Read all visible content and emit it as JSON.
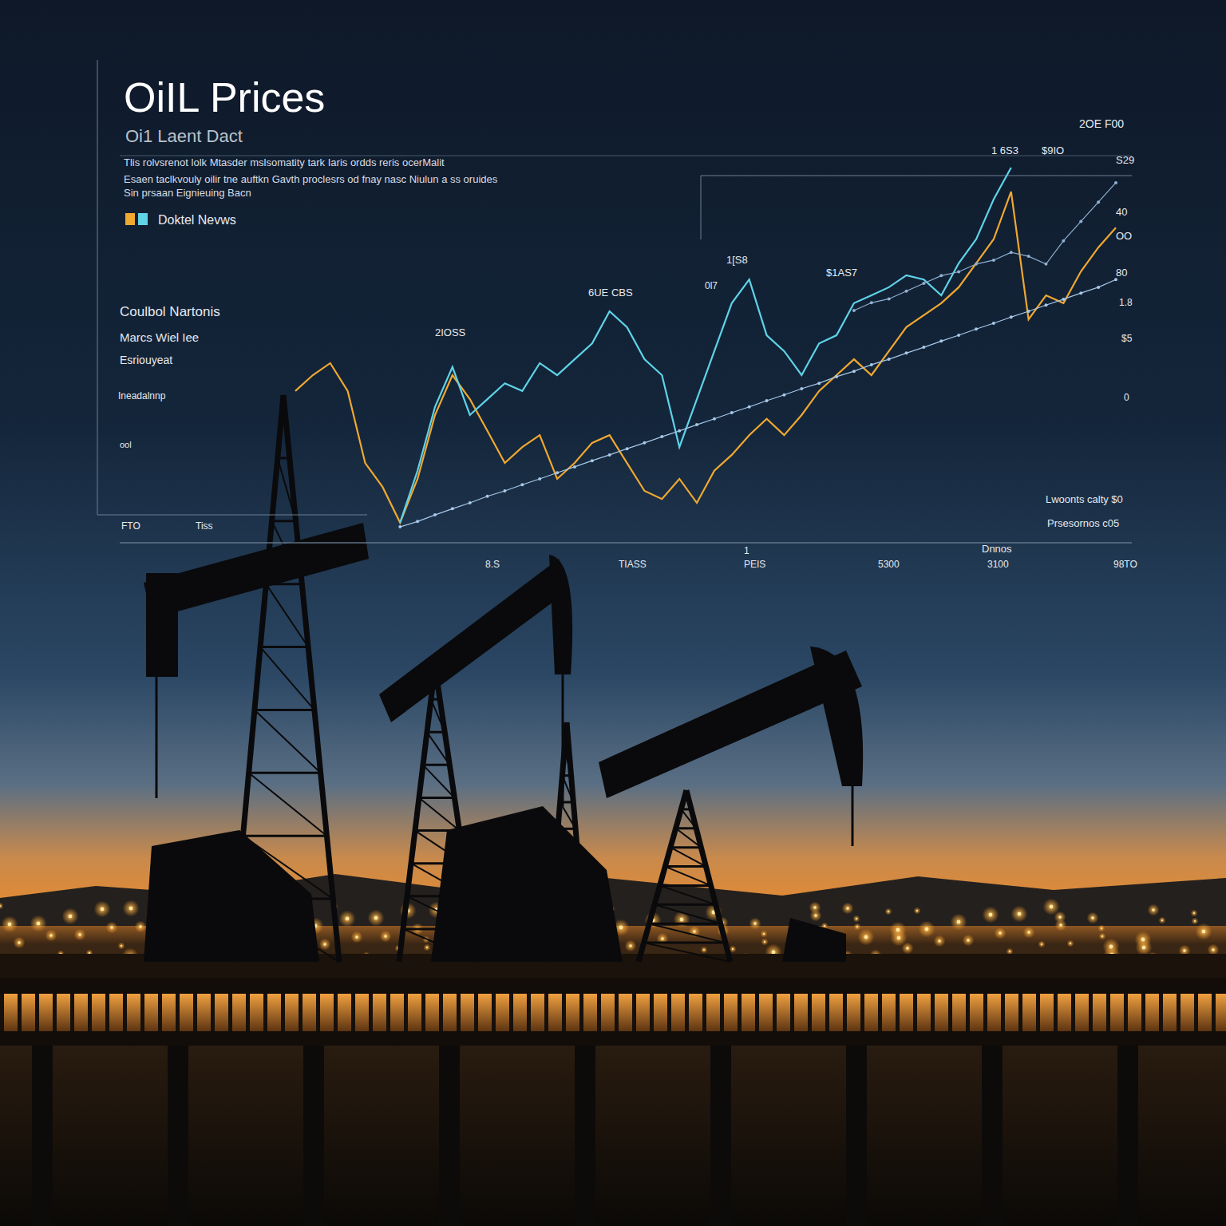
{
  "chart_data": {
    "type": "line",
    "title": "OiIL Prices",
    "subtitle": "Oi1 Laent Dact",
    "annotations": [
      "Tlis rolvsrenot lolk Mtasder mslsomatity tark Iaris ordds reris ocerMalit",
      "Esaen taclkvouly oilir tne auftkn Gavth proclesrs od fnay nasc Niulun a ss oruides",
      "Sin prsaan Eignieuing Bacn",
      "Doktel Nevws",
      "Coulbol Nartonis",
      "Marcs Wiel Iee",
      "Esriouyeat",
      "Ineadalnnp",
      "ool",
      "2IOSS",
      "6UE CBS",
      "0l7",
      "1[S8",
      "$1AS7",
      "1 6S3",
      "$9IO",
      "2OE F00",
      "S29",
      "40",
      "OO",
      "80",
      "1.8",
      "$5",
      "0",
      "Lwoonts calty $0",
      "Prsesornos c05",
      "Dnnos",
      "FTO",
      "Tiss",
      "8.S",
      "TIASS",
      "1",
      "PEIS",
      "5300",
      "3100",
      "98TO"
    ],
    "categories": [
      null,
      null,
      null,
      null,
      null,
      null,
      null,
      null,
      null,
      null,
      null,
      null,
      null,
      null,
      null,
      null,
      null,
      null,
      null,
      null,
      null,
      null,
      null,
      null,
      null,
      null,
      null,
      null,
      null,
      null,
      null,
      null,
      null,
      null,
      null,
      null,
      null,
      null,
      null,
      null,
      null,
      null,
      null,
      null,
      null,
      null,
      null,
      null
    ],
    "series": [
      {
        "color": "#f0a830",
        "marker": "none",
        "line_style": "solid",
        "values": [
          39.2,
          43.3,
          46.4,
          39.2,
          20.6,
          14.4,
          5.2,
          16.5,
          33,
          43.3,
          37.1,
          28.9,
          20.6,
          24.7,
          27.8,
          16.5,
          20.6,
          25.8,
          27.8,
          20.6,
          13.4,
          11.3,
          16.5,
          10.3,
          18.6,
          22.7,
          27.8,
          32,
          27.8,
          33,
          39.2,
          43.3,
          47.4,
          43.3,
          49.5,
          55.7,
          58.8,
          61.9,
          66,
          72.2,
          78.4,
          90.7,
          57.7,
          63.9,
          61.9,
          70.1,
          76.3,
          81.4
        ]
      },
      {
        "color": "#5fd3e8",
        "marker": "none",
        "line_style": "solid",
        "values": [
          null,
          null,
          null,
          null,
          null,
          null,
          5.2,
          18.6,
          35.1,
          45.4,
          33,
          37.1,
          41.2,
          39.2,
          46.4,
          43.3,
          47.4,
          51.5,
          59.8,
          55.7,
          47.4,
          43.3,
          24.7,
          37.1,
          49.5,
          61.9,
          68,
          53.6,
          49.5,
          43.3,
          51.5,
          53.6,
          61.9,
          63.9,
          66,
          69.1,
          68,
          63.9,
          72.2,
          78.4,
          88.7,
          96.9,
          null,
          null,
          null,
          null,
          null,
          null
        ]
      },
      {
        "color": "#a8c8e8",
        "marker": "circle",
        "line_style": "solid",
        "values": [
          null,
          null,
          null,
          null,
          null,
          null,
          4.1,
          5.5,
          7.2,
          8.8,
          10.3,
          12,
          13.4,
          15,
          16.5,
          18.1,
          19.6,
          21.2,
          22.7,
          24.3,
          25.8,
          27.4,
          28.9,
          30.5,
          32,
          33.6,
          35.1,
          36.7,
          38.2,
          39.8,
          41.2,
          42.9,
          44.3,
          46,
          47.4,
          49,
          50.5,
          52.1,
          53.6,
          55.2,
          56.7,
          58.3,
          59.8,
          61.4,
          62.9,
          64.5,
          66,
          68
        ]
      },
      {
        "color": "#8fb0d0",
        "marker": "circle",
        "line_style": "solid",
        "values": [
          null,
          null,
          null,
          null,
          null,
          null,
          null,
          null,
          null,
          null,
          null,
          null,
          null,
          null,
          null,
          null,
          null,
          null,
          null,
          null,
          null,
          null,
          null,
          null,
          null,
          null,
          null,
          null,
          null,
          null,
          null,
          null,
          60,
          62,
          63,
          65,
          67,
          69,
          70,
          72,
          73,
          75,
          74,
          72,
          78,
          83,
          88,
          93
        ]
      }
    ],
    "ylim": [
      0,
      100
    ],
    "yticks": [
      0,
      20,
      40,
      60,
      80,
      100
    ],
    "grid": true,
    "tick_labels": false
  }
}
